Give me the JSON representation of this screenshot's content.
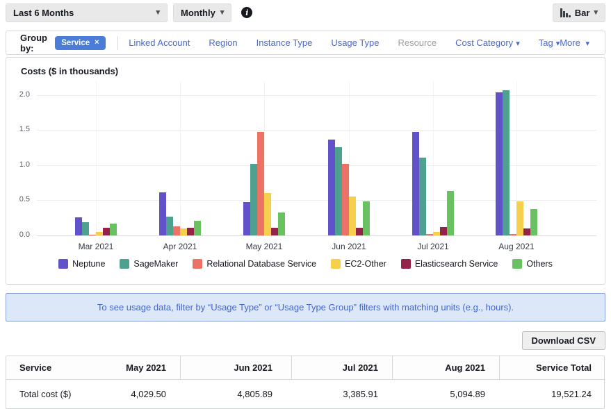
{
  "topbar": {
    "period": "Last 6 Months",
    "granularity": "Monthly",
    "chart_type": "Bar"
  },
  "group_by": {
    "label": "Group by:",
    "selected_chip": "Service",
    "links": [
      {
        "label": "Linked Account",
        "state": "enabled",
        "dropdown": false
      },
      {
        "label": "Region",
        "state": "enabled",
        "dropdown": false
      },
      {
        "label": "Instance Type",
        "state": "enabled",
        "dropdown": false
      },
      {
        "label": "Usage Type",
        "state": "enabled",
        "dropdown": false
      },
      {
        "label": "Resource",
        "state": "disabled",
        "dropdown": false
      },
      {
        "label": "Cost Category",
        "state": "enabled",
        "dropdown": true
      },
      {
        "label": "Tag",
        "state": "enabled",
        "dropdown": true
      }
    ],
    "more_label": "More"
  },
  "chart_data": {
    "type": "bar",
    "title": "Costs ($ in thousands)",
    "categories": [
      "Mar 2021",
      "Apr 2021",
      "May 2021",
      "Jun 2021",
      "Jul 2021",
      "Aug 2021"
    ],
    "series": [
      {
        "name": "Neptune",
        "color": "#6152c9",
        "values": [
          0.26,
          0.61,
          0.48,
          1.37,
          1.48,
          2.04
        ]
      },
      {
        "name": "SageMaker",
        "color": "#4fa18f",
        "values": [
          0.19,
          0.27,
          1.02,
          1.26,
          1.11,
          2.07
        ]
      },
      {
        "name": "Relational Database Service",
        "color": "#ec7265",
        "values": [
          0.01,
          0.13,
          1.48,
          1.02,
          0.02,
          0.02
        ]
      },
      {
        "name": "EC2-Other",
        "color": "#f6d04d",
        "values": [
          0.05,
          0.1,
          0.6,
          0.55,
          0.05,
          0.49
        ]
      },
      {
        "name": "Elasticsearch Service",
        "color": "#942349",
        "values": [
          0.11,
          0.11,
          0.11,
          0.11,
          0.12,
          0.1
        ]
      },
      {
        "name": "Others",
        "color": "#69c161",
        "values": [
          0.17,
          0.21,
          0.33,
          0.49,
          0.63,
          0.38
        ]
      }
    ],
    "ylim": [
      0,
      2.2
    ],
    "yticks": [
      0.0,
      0.5,
      1.0,
      1.5,
      2.0
    ],
    "grid": true,
    "legend_position": "bottom"
  },
  "banner": {
    "text": "To see usage data, filter by “Usage Type” or “Usage Type Group” filters with matching units (e.g., hours)."
  },
  "download_button": "Download CSV",
  "table": {
    "columns": [
      "Service",
      "May 2021",
      "Jun 2021",
      "Jul 2021",
      "Aug 2021",
      "Service Total"
    ],
    "rows": [
      [
        "Total cost ($)",
        "4,029.50",
        "4,805.89",
        "3,385.91",
        "5,094.89",
        "19,521.24"
      ]
    ]
  }
}
